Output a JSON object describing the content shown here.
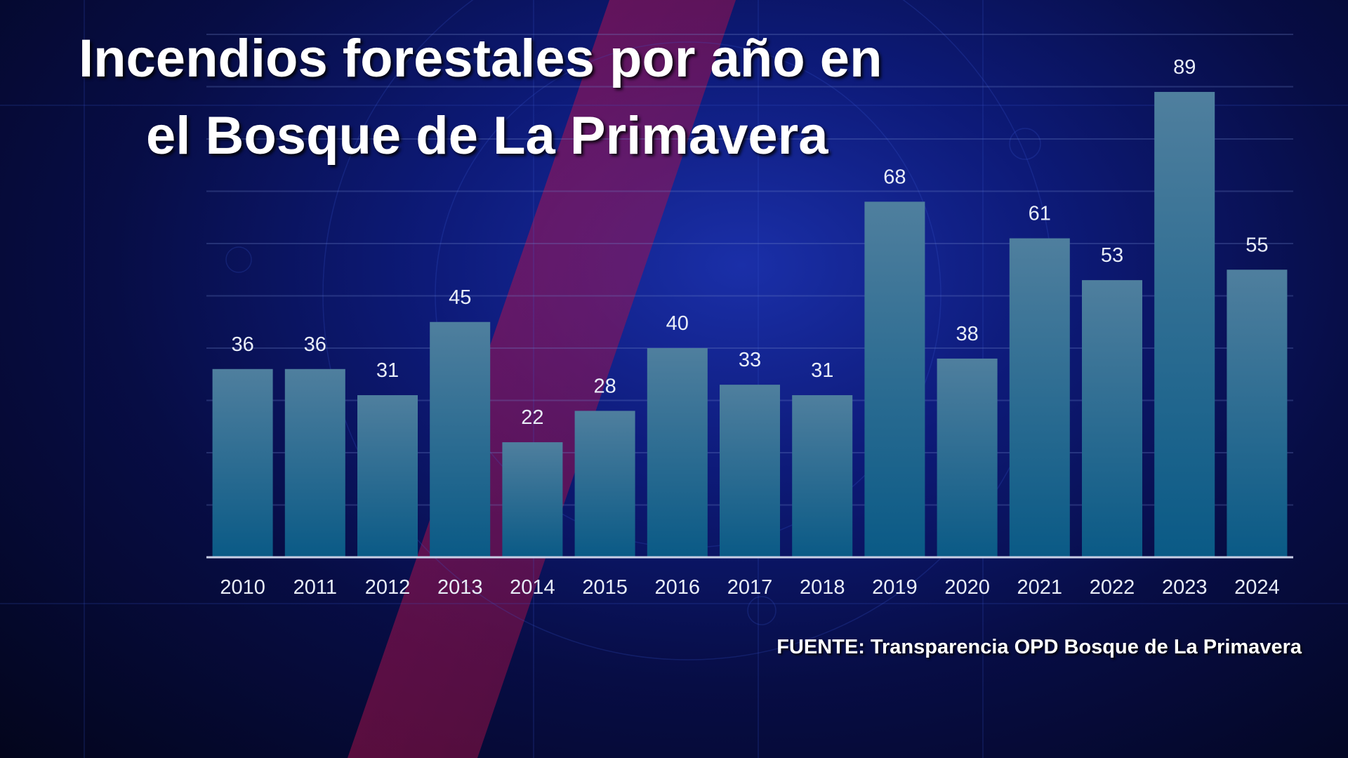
{
  "title": {
    "line1": "Incendios forestales por año en",
    "line2": "el Bosque de La Primavera"
  },
  "source": "FUENTE: Transparencia OPD Bosque de La Primavera",
  "colors": {
    "background": "#0d1a78",
    "bar_top": "#4f7f9e",
    "bar_bottom": "#0a5a86",
    "accent_stripe": "#b0124a",
    "text": "#ffffff"
  },
  "chart_data": {
    "type": "bar",
    "title": "Incendios forestales por año en el Bosque de La Primavera",
    "xlabel": "",
    "ylabel": "",
    "categories": [
      "2010",
      "2011",
      "2012",
      "2013",
      "2014",
      "2015",
      "2016",
      "2017",
      "2018",
      "2019",
      "2020",
      "2021",
      "2022",
      "2023",
      "2024"
    ],
    "values": [
      36,
      36,
      31,
      45,
      22,
      28,
      40,
      33,
      31,
      68,
      38,
      61,
      53,
      89,
      55
    ],
    "ylim": [
      0,
      100
    ],
    "grid": true,
    "data_labels": true,
    "legend": "none"
  }
}
